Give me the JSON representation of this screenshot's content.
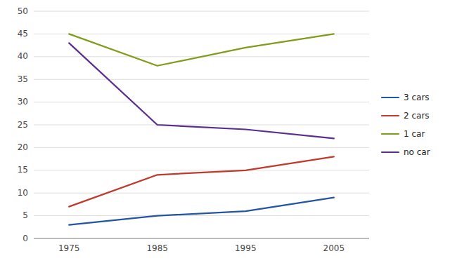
{
  "chart_data": {
    "type": "line",
    "x": [
      1975,
      1985,
      1995,
      2005
    ],
    "series": [
      {
        "name": "3 cars",
        "color": "#2454a4",
        "values": [
          3,
          5,
          6,
          9
        ]
      },
      {
        "name": "2 cars",
        "color": "#c0392b",
        "values": [
          7,
          14,
          15,
          18
        ]
      },
      {
        "name": "1 car",
        "color": "#7f9c1a",
        "values": [
          45,
          38,
          42,
          45
        ]
      },
      {
        "name": "no car",
        "color": "#5b2d8e",
        "values": [
          43,
          25,
          24,
          22
        ]
      }
    ],
    "xlim": [
      1971,
      2009
    ],
    "xticks": [
      1975,
      1985,
      1995,
      2005
    ],
    "ylim": [
      0,
      50
    ],
    "yticks": [
      0,
      5,
      10,
      15,
      20,
      25,
      30,
      35,
      40,
      45,
      50
    ],
    "grid": true,
    "legend": "right"
  }
}
